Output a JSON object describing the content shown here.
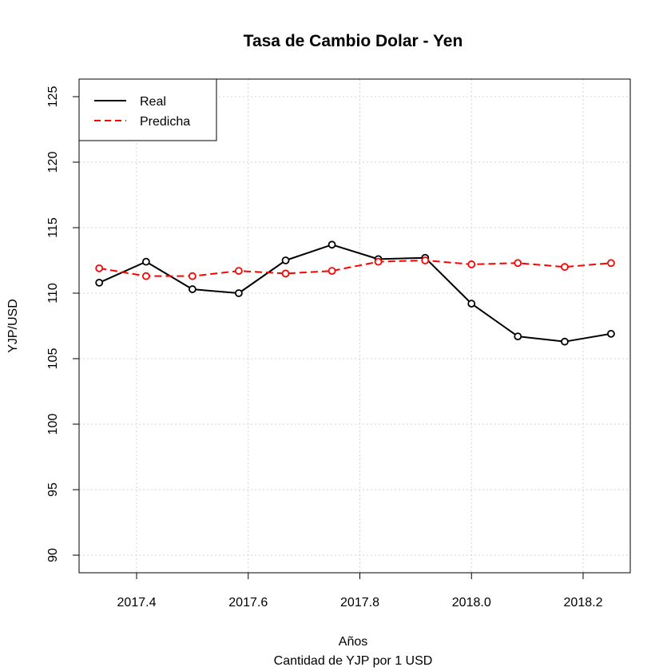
{
  "chart_data": {
    "type": "line",
    "title": "Tasa de Cambio Dolar - Yen",
    "xlabel": "Años",
    "sublabel": "Cantidad de YJP por 1 USD",
    "ylabel": "YJP/USD",
    "xlim": [
      2017.33,
      2018.25
    ],
    "ylim": [
      90,
      126
    ],
    "x_ticks": [
      2017.4,
      2017.6,
      2017.8,
      2018.0,
      2018.2
    ],
    "x_tick_labels": [
      "2017.4",
      "2017.6",
      "2017.8",
      "2018.0",
      "2018.2"
    ],
    "y_ticks": [
      90,
      95,
      100,
      105,
      110,
      115,
      120,
      125
    ],
    "y_tick_labels": [
      "90",
      "95",
      "100",
      "105",
      "110",
      "115",
      "120",
      "125"
    ],
    "grid": true,
    "legend_position": "top-left",
    "x": [
      2017.333,
      2017.417,
      2017.5,
      2017.583,
      2017.667,
      2017.75,
      2017.833,
      2017.917,
      2018.0,
      2018.083,
      2018.167,
      2018.25
    ],
    "series": [
      {
        "name": "Real",
        "color": "#000000",
        "line_style": "solid",
        "values": [
          110.8,
          112.4,
          110.3,
          110.0,
          112.5,
          113.7,
          112.6,
          112.7,
          109.2,
          106.7,
          106.3,
          106.9
        ]
      },
      {
        "name": "Predicha",
        "color": "#ff0000",
        "line_style": "dashed",
        "values": [
          111.9,
          111.3,
          111.3,
          111.7,
          111.5,
          111.7,
          112.4,
          112.5,
          112.2,
          112.3,
          112.0,
          112.3
        ]
      }
    ]
  }
}
